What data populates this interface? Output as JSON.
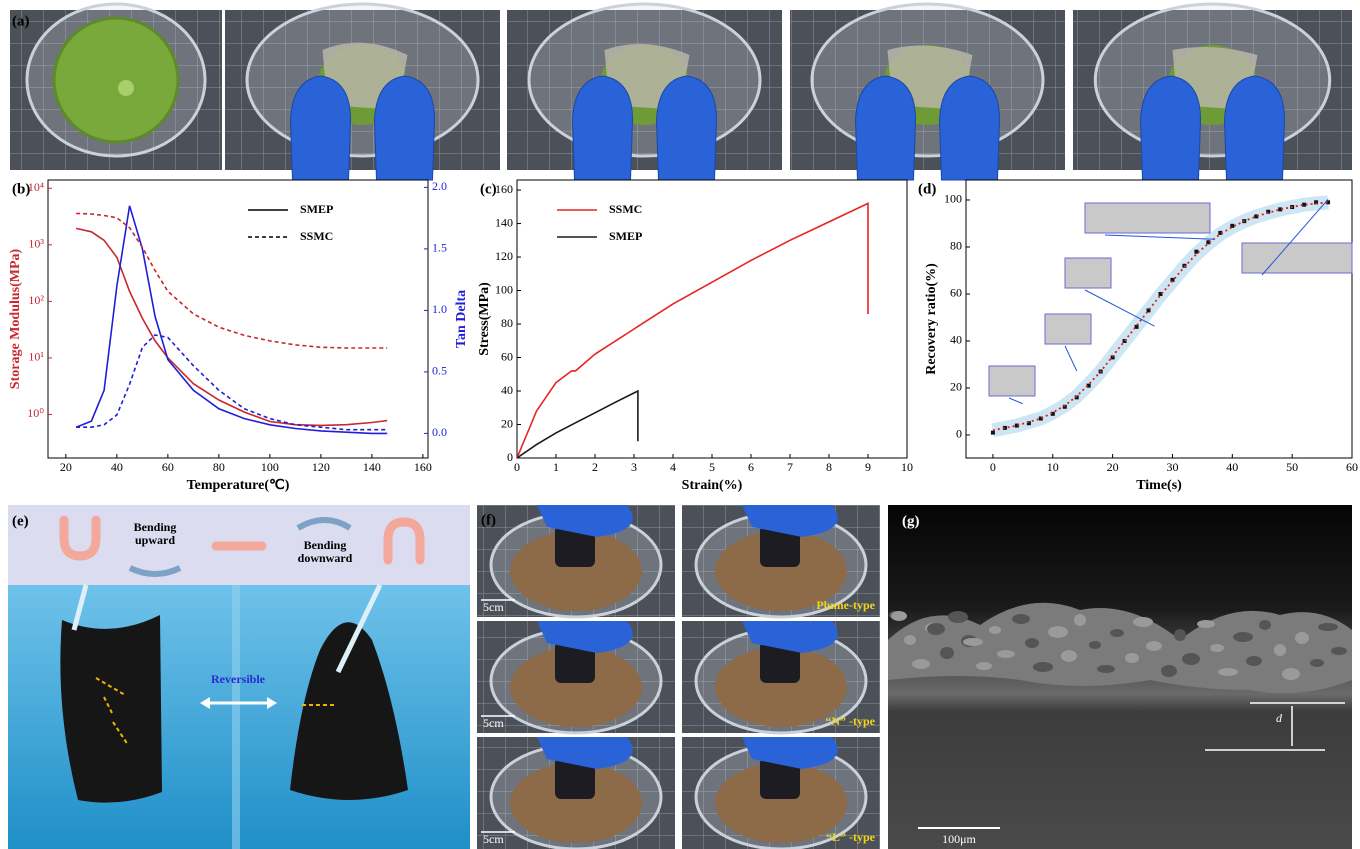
{
  "panel_labels": [
    "(a)",
    "(b)",
    "(c)",
    "(d)",
    "(e)",
    "(f)",
    "(g)"
  ],
  "annotations": {
    "bending_upward": [
      "Bending",
      "upward"
    ],
    "bending_downward": [
      "Bending",
      "downward"
    ],
    "reversible": "Reversible",
    "f_scale": [
      "5cm",
      "5cm",
      "5cm"
    ],
    "f_types": [
      "Plume-type",
      "“N” -type",
      "“L” -type"
    ],
    "g_scale": "100μm",
    "g_thickness": "d"
  },
  "chart_data": [
    {
      "type": "line",
      "x_label": "Temperature(℃)",
      "y_label": "Storage Modulus(MPa)",
      "y2_label": "Tan Delta",
      "storage_color": "#c8282e",
      "tan_delta_color": "#1f1fd8",
      "ylog": true,
      "legend": "upper right",
      "xlim": [
        13,
        162
      ],
      "xticks": [
        20,
        40,
        60,
        80,
        100,
        120,
        140,
        160
      ],
      "ylim": [
        0.17,
        14000
      ],
      "yticks": [
        {
          "value": 1,
          "label": "10⁰"
        },
        {
          "value": 10,
          "label": "10¹"
        },
        {
          "value": 100,
          "label": "10²"
        },
        {
          "value": 1000,
          "label": "10³"
        },
        {
          "value": 10000,
          "label": "10⁴"
        }
      ],
      "y2lim": [
        -0.2,
        2.06
      ],
      "y2ticks": [
        {
          "value": 0,
          "label": "0.0"
        },
        {
          "value": 0.5,
          "label": "0.5"
        },
        {
          "value": 1,
          "label": "1.0"
        },
        {
          "value": 1.5,
          "label": "1.5"
        },
        {
          "value": 2,
          "label": "2.0"
        }
      ],
      "x": [
        24,
        30,
        35,
        40,
        45,
        50,
        55,
        60,
        70,
        80,
        90,
        100,
        110,
        120,
        130,
        140,
        146
      ],
      "series": [
        {
          "name": "SMEP",
          "dash": "solid",
          "storage": [
            1950,
            1700,
            1200,
            600,
            150,
            50,
            20,
            10,
            3.5,
            1.8,
            1.1,
            0.75,
            0.66,
            0.64,
            0.66,
            0.72,
            0.78
          ],
          "tan_delta": [
            0.05,
            0.1,
            0.35,
            1.2,
            1.85,
            1.5,
            0.95,
            0.6,
            0.35,
            0.2,
            0.12,
            0.07,
            0.04,
            0.02,
            0.01,
            0.0,
            0.0
          ]
        },
        {
          "name": "SSMC",
          "dash": "dashed",
          "storage": [
            3600,
            3500,
            3300,
            3000,
            2000,
            900,
            350,
            150,
            60,
            35,
            25,
            20,
            17,
            15.5,
            15,
            15,
            15
          ],
          "tan_delta": [
            0.05,
            0.05,
            0.07,
            0.15,
            0.4,
            0.7,
            0.8,
            0.78,
            0.55,
            0.35,
            0.2,
            0.12,
            0.07,
            0.05,
            0.03,
            0.03,
            0.03
          ]
        }
      ]
    },
    {
      "type": "line",
      "x_label": "Strain(%)",
      "y_label": "Stress(MPa)",
      "legend": "upper left",
      "xlim": [
        0,
        10
      ],
      "xticks": [
        0,
        1,
        2,
        3,
        4,
        5,
        6,
        7,
        8,
        9,
        10
      ],
      "ylim": [
        0,
        166
      ],
      "yticks": [
        0,
        20,
        40,
        60,
        80,
        100,
        120,
        140,
        160
      ],
      "series": [
        {
          "name": "SSMC",
          "color": "#e8231f",
          "x": [
            0,
            0.5,
            1,
            1.4,
            1.5,
            2,
            3,
            4,
            5,
            6,
            7,
            8,
            9,
            9
          ],
          "values": [
            0,
            28,
            45,
            52,
            52,
            62,
            77,
            92,
            105,
            118,
            130,
            141,
            152,
            86
          ]
        },
        {
          "name": "SMEP",
          "color": "#1a1a1a",
          "x": [
            0,
            0.5,
            1,
            1.5,
            2,
            2.5,
            3.1,
            3.1
          ],
          "values": [
            0,
            8,
            15,
            21,
            27,
            33,
            40,
            10
          ]
        }
      ]
    },
    {
      "type": "scatter",
      "x_label": "Time(s)",
      "y_label": "Recovery ratio(%)",
      "xlim": [
        -4.5,
        60
      ],
      "xticks": [
        0,
        10,
        20,
        30,
        40,
        50,
        60
      ],
      "ylim": [
        -9.8,
        108.5
      ],
      "yticks": [
        0,
        20,
        40,
        60,
        80,
        100
      ],
      "x": [
        0,
        2,
        4,
        6,
        8,
        10,
        12,
        14,
        16,
        18,
        20,
        22,
        24,
        26,
        28,
        30,
        32,
        34,
        36,
        38,
        40,
        42,
        44,
        46,
        48,
        50,
        52,
        54,
        56
      ],
      "series": [
        {
          "color": "#111111",
          "marker": "square",
          "values": [
            1,
            3,
            4,
            5,
            7,
            9,
            12,
            16,
            21,
            27,
            33,
            40,
            46,
            53,
            60,
            66,
            72,
            78,
            82,
            86,
            89,
            91,
            93,
            95,
            96,
            97,
            98,
            99,
            99
          ]
        },
        {
          "color": "#e02020",
          "dash": "dotted",
          "values": [
            2,
            3,
            4,
            5.5,
            7,
            9.5,
            12.5,
            16.5,
            21.5,
            27,
            33.5,
            40,
            46.5,
            53,
            59.5,
            65.5,
            71.5,
            77,
            81.5,
            85.5,
            88.5,
            91,
            93,
            94.5,
            96,
            97,
            98,
            98.5,
            99
          ]
        }
      ]
    }
  ]
}
